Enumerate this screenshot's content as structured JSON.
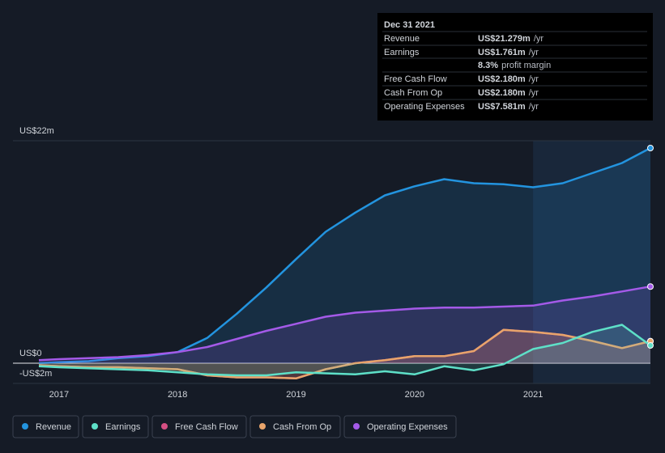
{
  "chart_data": {
    "type": "line",
    "x": [
      2016.83,
      2017.0,
      2017.25,
      2017.5,
      2017.75,
      2018.0,
      2018.25,
      2018.5,
      2018.75,
      2019.0,
      2019.25,
      2019.5,
      2019.75,
      2020.0,
      2020.25,
      2020.5,
      2020.75,
      2021.0,
      2021.25,
      2021.5,
      2021.75,
      2021.99
    ],
    "xlim": [
      2016.83,
      2021.99
    ],
    "xticks": [
      2017,
      2018,
      2019,
      2020,
      2021
    ],
    "ylim": [
      -2,
      22
    ],
    "yticks": [
      {
        "value": 22,
        "label": "US$22m"
      },
      {
        "value": 0,
        "label": "US$0"
      },
      {
        "value": -2,
        "label": "-US$2m"
      }
    ],
    "highlight_from": 2021,
    "series": [
      {
        "name": "Revenue",
        "color": "#2394df",
        "values": [
          0.0,
          0.1,
          0.2,
          0.5,
          0.7,
          1.1,
          2.5,
          4.9,
          7.5,
          10.3,
          13.0,
          14.9,
          16.6,
          17.5,
          18.2,
          17.8,
          17.7,
          17.4,
          17.8,
          18.8,
          19.8,
          21.279
        ]
      },
      {
        "name": "Earnings",
        "color": "#5ee0c8",
        "values": [
          -0.3,
          -0.4,
          -0.5,
          -0.6,
          -0.7,
          -0.9,
          -1.1,
          -1.2,
          -1.2,
          -0.9,
          -1.0,
          -1.1,
          -0.8,
          -1.1,
          -0.3,
          -0.7,
          -0.1,
          1.4,
          2.0,
          3.1,
          3.8,
          1.761
        ]
      },
      {
        "name": "Free Cash Flow",
        "color": "#d44f83",
        "values": [
          -0.2,
          -0.3,
          -0.4,
          -0.4,
          -0.5,
          -0.6,
          -1.2,
          -1.4,
          -1.4,
          -1.5,
          -0.6,
          0.0,
          0.3,
          0.7,
          0.7,
          1.2,
          3.3,
          3.1,
          2.8,
          2.2,
          1.5,
          2.18
        ]
      },
      {
        "name": "Cash From Op",
        "color": "#e8a46b",
        "values": [
          -0.2,
          -0.3,
          -0.4,
          -0.4,
          -0.5,
          -0.6,
          -1.2,
          -1.4,
          -1.4,
          -1.5,
          -0.6,
          0.0,
          0.3,
          0.7,
          0.7,
          1.2,
          3.3,
          3.1,
          2.8,
          2.2,
          1.5,
          2.18
        ]
      },
      {
        "name": "Operating Expenses",
        "color": "#a45ae8",
        "values": [
          0.3,
          0.4,
          0.5,
          0.6,
          0.8,
          1.1,
          1.6,
          2.4,
          3.2,
          3.9,
          4.6,
          5.0,
          5.2,
          5.4,
          5.5,
          5.5,
          5.6,
          5.7,
          6.2,
          6.6,
          7.1,
          7.581
        ]
      }
    ]
  },
  "tooltip": {
    "date": "Dec 31 2021",
    "rows": [
      {
        "label": "Revenue",
        "value": "US$21.279m",
        "unit": "/yr",
        "color": "#2394df"
      },
      {
        "label": "Earnings",
        "value": "US$1.761m",
        "unit": "/yr",
        "color": "#5ee0c8"
      },
      {
        "value": "8.3%",
        "unit": "profit margin",
        "color": "#ffffff"
      },
      {
        "label": "Free Cash Flow",
        "value": "US$2.180m",
        "unit": "/yr",
        "color": "#d44f83"
      },
      {
        "label": "Cash From Op",
        "value": "US$2.180m",
        "unit": "/yr",
        "color": "#e8a46b"
      },
      {
        "label": "Operating Expenses",
        "value": "US$7.581m",
        "unit": "/yr",
        "color": "#a45ae8"
      }
    ]
  }
}
